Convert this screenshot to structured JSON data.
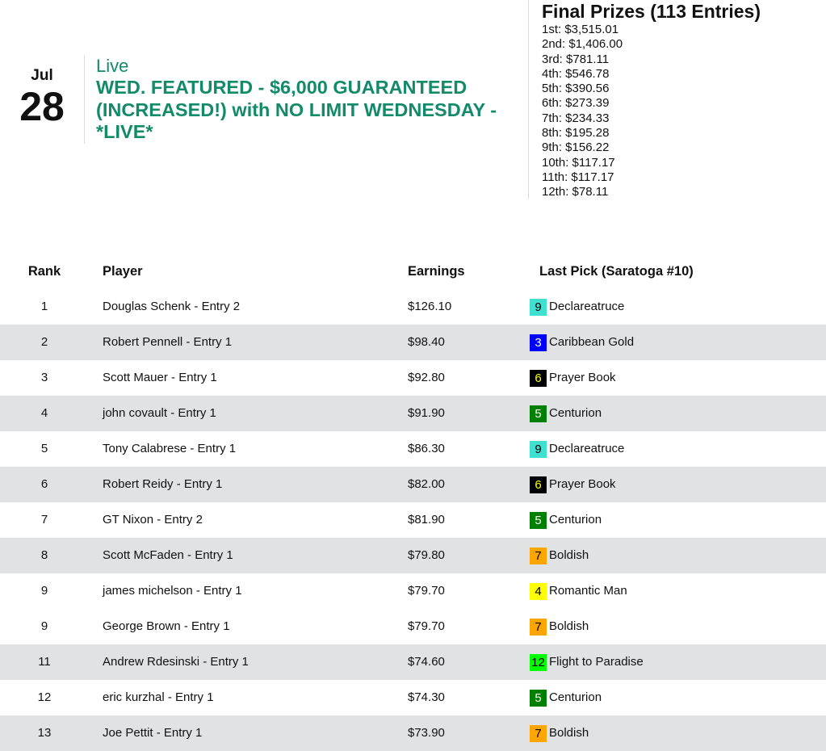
{
  "event": {
    "month": "Jul",
    "day": "28",
    "status": "Live",
    "title": "WED. FEATURED - $6,000 GUARANTEED (INCREASED!) with NO LIMIT WEDNESDAY - *LIVE*"
  },
  "prizes": {
    "title": "Final Prizes (113 Entries)",
    "lines": [
      "1st: $3,515.01",
      "2nd: $1,406.00",
      "3rd: $781.11",
      "4th: $546.78",
      "5th: $390.56",
      "6th: $273.39",
      "7th: $234.33",
      "8th: $195.28",
      "9th: $156.22",
      "10th: $117.17",
      "11th: $117.17",
      "12th: $78.11"
    ]
  },
  "table": {
    "headers": {
      "rank": "Rank",
      "player": "Player",
      "earnings": "Earnings",
      "last_pick": "Last Pick (Saratoga #10)"
    },
    "rows": [
      {
        "rank": "1",
        "player": "Douglas Schenk - Entry 2",
        "earnings": "$126.10",
        "pick_num": "9",
        "pick_name": "Declareatruce",
        "bg": "#40e0d0",
        "fg": "#000000",
        "shaded": false
      },
      {
        "rank": "2",
        "player": "Robert Pennell - Entry 1",
        "earnings": "$98.40",
        "pick_num": "3",
        "pick_name": "Caribbean Gold",
        "bg": "#0000ff",
        "fg": "#ffffff",
        "shaded": true
      },
      {
        "rank": "3",
        "player": "Scott Mauer - Entry 1",
        "earnings": "$92.80",
        "pick_num": "6",
        "pick_name": "Prayer Book",
        "bg": "#000000",
        "fg": "#ffff00",
        "shaded": false
      },
      {
        "rank": "4",
        "player": "john covault - Entry 1",
        "earnings": "$91.90",
        "pick_num": "5",
        "pick_name": "Centurion",
        "bg": "#008000",
        "fg": "#ffffff",
        "shaded": true
      },
      {
        "rank": "5",
        "player": "Tony Calabrese - Entry 1",
        "earnings": "$86.30",
        "pick_num": "9",
        "pick_name": "Declareatruce",
        "bg": "#40e0d0",
        "fg": "#000000",
        "shaded": false
      },
      {
        "rank": "6",
        "player": "Robert Reidy - Entry 1",
        "earnings": "$82.00",
        "pick_num": "6",
        "pick_name": "Prayer Book",
        "bg": "#000000",
        "fg": "#ffff00",
        "shaded": true
      },
      {
        "rank": "7",
        "player": "GT Nixon - Entry 2",
        "earnings": "$81.90",
        "pick_num": "5",
        "pick_name": "Centurion",
        "bg": "#008000",
        "fg": "#ffffff",
        "shaded": false
      },
      {
        "rank": "8",
        "player": "Scott McFaden - Entry 1",
        "earnings": "$79.80",
        "pick_num": "7",
        "pick_name": "Boldish",
        "bg": "#ffa500",
        "fg": "#000000",
        "shaded": true
      },
      {
        "rank": "9",
        "player": "james michelson - Entry 1",
        "earnings": "$79.70",
        "pick_num": "4",
        "pick_name": "Romantic Man",
        "bg": "#ffff00",
        "fg": "#000000",
        "shaded": false
      },
      {
        "rank": "9",
        "player": "George Brown - Entry 1",
        "earnings": "$79.70",
        "pick_num": "7",
        "pick_name": "Boldish",
        "bg": "#ffa500",
        "fg": "#000000",
        "shaded": false
      },
      {
        "rank": "11",
        "player": "Andrew Rdesinski - Entry 1",
        "earnings": "$74.60",
        "pick_num": "12",
        "pick_name": "Flight to Paradise",
        "bg": "#00ff00",
        "fg": "#000000",
        "shaded": true
      },
      {
        "rank": "12",
        "player": "eric kurzhal - Entry 1",
        "earnings": "$74.30",
        "pick_num": "5",
        "pick_name": "Centurion",
        "bg": "#008000",
        "fg": "#ffffff",
        "shaded": false
      },
      {
        "rank": "13",
        "player": "Joe Pettit - Entry 1",
        "earnings": "$73.90",
        "pick_num": "7",
        "pick_name": "Boldish",
        "bg": "#ffa500",
        "fg": "#000000",
        "shaded": true
      }
    ]
  }
}
